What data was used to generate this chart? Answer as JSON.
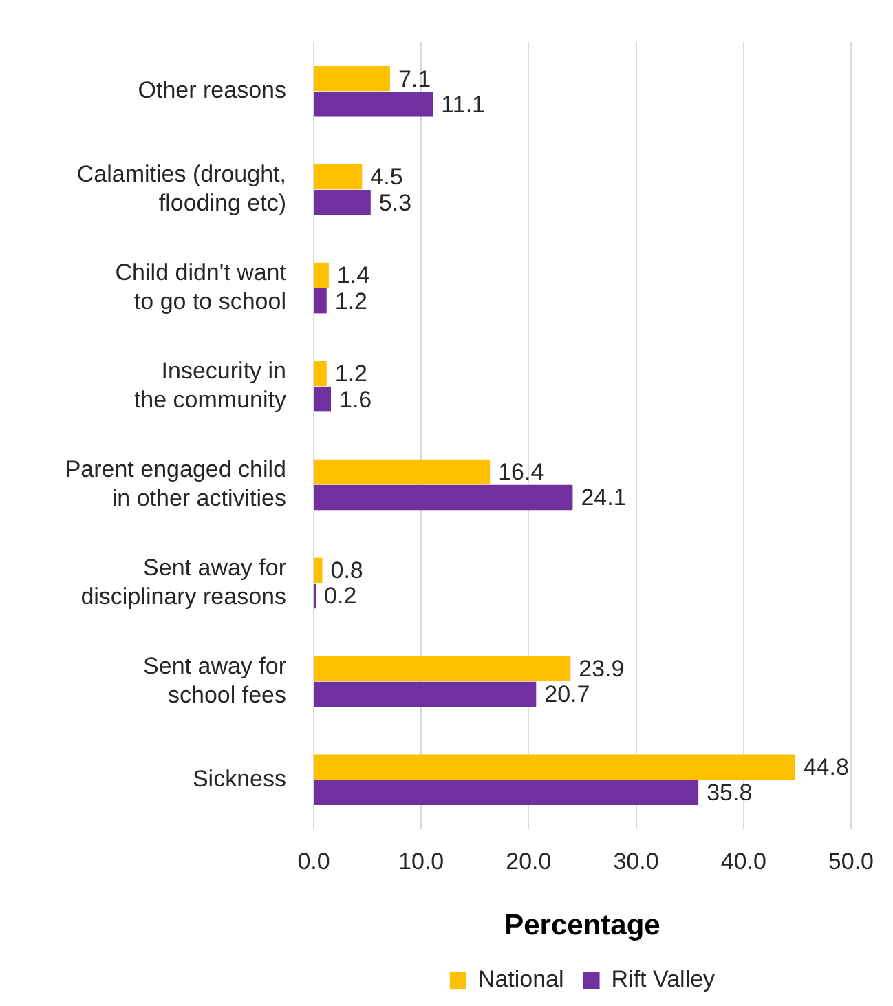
{
  "chart_data": {
    "type": "bar",
    "orientation": "horizontal",
    "categories": [
      "Other reasons",
      "Calamities (drought,\nflooding etc)",
      "Child didn't want\nto go to school",
      "Insecurity in\nthe community",
      "Parent engaged child\nin other activities",
      "Sent away for\ndisciplinary reasons",
      "Sent away for\nschool fees",
      "Sickness"
    ],
    "series": [
      {
        "name": "National",
        "color": "#ffc000",
        "values": [
          7.1,
          4.5,
          1.4,
          1.2,
          16.4,
          0.8,
          23.9,
          44.8
        ]
      },
      {
        "name": "Rift Valley",
        "color": "#7030a0",
        "values": [
          11.1,
          5.3,
          1.2,
          1.6,
          24.1,
          0.2,
          20.7,
          35.8
        ]
      }
    ],
    "xlim": [
      0,
      50
    ],
    "xticks": [
      {
        "value": 0,
        "label": "0.0"
      },
      {
        "value": 10,
        "label": "10.0"
      },
      {
        "value": 20,
        "label": "20.0"
      },
      {
        "value": 30,
        "label": "30.0"
      },
      {
        "value": 40,
        "label": "40.0"
      },
      {
        "value": 50,
        "label": "50.0"
      }
    ],
    "xlabel": "Percentage",
    "grid": "x",
    "legend": "bottom",
    "data_labels": true
  }
}
